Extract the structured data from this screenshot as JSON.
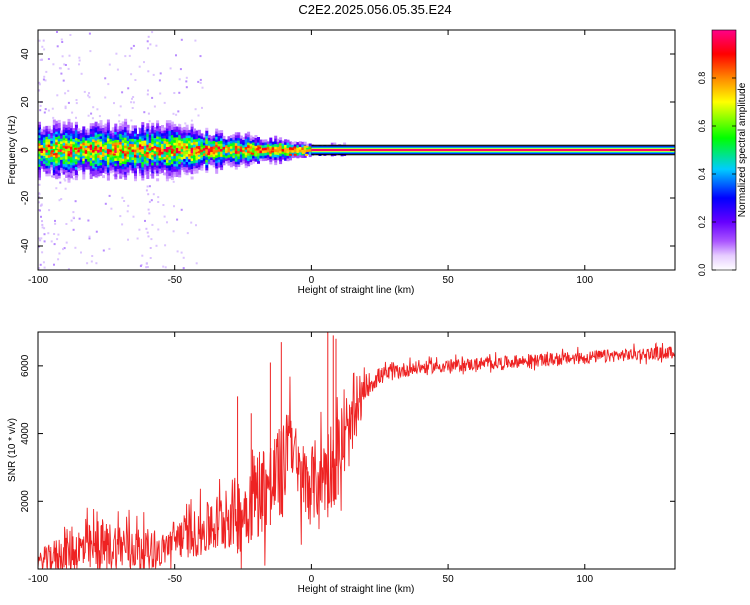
{
  "title": "C2E2.2025.056.05.35.E24",
  "chart_data": [
    {
      "type": "heatmap",
      "xlabel": "Height of straight line (km)",
      "ylabel": "Frequency (Hz)",
      "xlim": [
        -100,
        133
      ],
      "ylim": [
        -50,
        50
      ],
      "xticks": [
        -100,
        -50,
        0,
        50,
        100
      ],
      "yticks": [
        -40,
        -20,
        0,
        20,
        40
      ],
      "grid": false,
      "colorbar": {
        "label": "Normalized spectral amplitude",
        "range": [
          0,
          1
        ],
        "ticks": [
          0.0,
          0.2,
          0.4,
          0.6,
          0.8
        ],
        "tick_labels": [
          "0.0",
          "0.2",
          "0.4",
          "0.6",
          "0.8"
        ],
        "colormap": [
          "#ffffff",
          "#cc99ff",
          "#7700ff",
          "#0000ff",
          "#00ccff",
          "#00ff00",
          "#ffff00",
          "#ff8800",
          "#ff0000",
          "#ff0066"
        ]
      },
      "band_center_hz": 0,
      "band_halfwidth_hz": [
        {
          "x": -100,
          "halfwidth": 7
        },
        {
          "x": -50,
          "halfwidth": 7
        },
        {
          "x": -35,
          "halfwidth": 5
        },
        {
          "x": -10,
          "halfwidth": 3
        },
        {
          "x": 0,
          "halfwidth": 1.5
        },
        {
          "x": 10,
          "halfwidth": 1.5
        },
        {
          "x": 133,
          "halfwidth": 1.5
        }
      ],
      "peak_line": {
        "color": "#ff0066",
        "x_start": 0,
        "x_end": 133,
        "frequency_hz": 0
      }
    },
    {
      "type": "line",
      "xlabel": "Height of straight line (km)",
      "ylabel": "SNR (10 * v/v)",
      "xlim": [
        -100,
        133
      ],
      "ylim": [
        0,
        7000
      ],
      "xticks": [
        -100,
        -50,
        0,
        50,
        100
      ],
      "yticks": [
        2000,
        4000,
        6000
      ],
      "grid": false,
      "series": [
        {
          "color": "#ee2222",
          "x": [
            -100,
            -90,
            -80,
            -70,
            -60,
            -55,
            -50,
            -45,
            -40,
            -35,
            -30,
            -25,
            -20,
            -15,
            -10,
            -8,
            -5,
            0,
            5,
            8,
            10,
            15,
            20,
            25,
            30,
            35,
            40,
            50,
            60,
            70,
            80,
            90,
            100,
            110,
            120,
            133
          ],
          "y": [
            200,
            500,
            600,
            700,
            600,
            500,
            900,
            1000,
            1100,
            1300,
            1600,
            1700,
            2300,
            2500,
            2900,
            4500,
            2600,
            2500,
            2900,
            3200,
            3300,
            4200,
            5400,
            5700,
            5800,
            5900,
            5950,
            6000,
            6050,
            6100,
            6150,
            6200,
            6250,
            6300,
            6350,
            6400
          ],
          "noise_amplitude": [
            300,
            900,
            1000,
            1000,
            800,
            600,
            800,
            900,
            1000,
            1200,
            1400,
            1500,
            1800,
            1900,
            1900,
            1500,
            1700,
            1600,
            1700,
            1800,
            1700,
            1200,
            500,
            350,
            300,
            300,
            250,
            250,
            250,
            250,
            250,
            250,
            250,
            250,
            250,
            250
          ],
          "spikes": [
            {
              "x": -11,
              "y": 6700
            },
            {
              "x": -15,
              "y": 6100
            },
            {
              "x": 6,
              "y": 7000
            },
            {
              "x": 8,
              "y": 6900
            },
            {
              "x": 9,
              "y": 6800
            },
            {
              "x": -27,
              "y": 5100
            },
            {
              "x": -22,
              "y": 4600
            }
          ]
        }
      ]
    }
  ]
}
